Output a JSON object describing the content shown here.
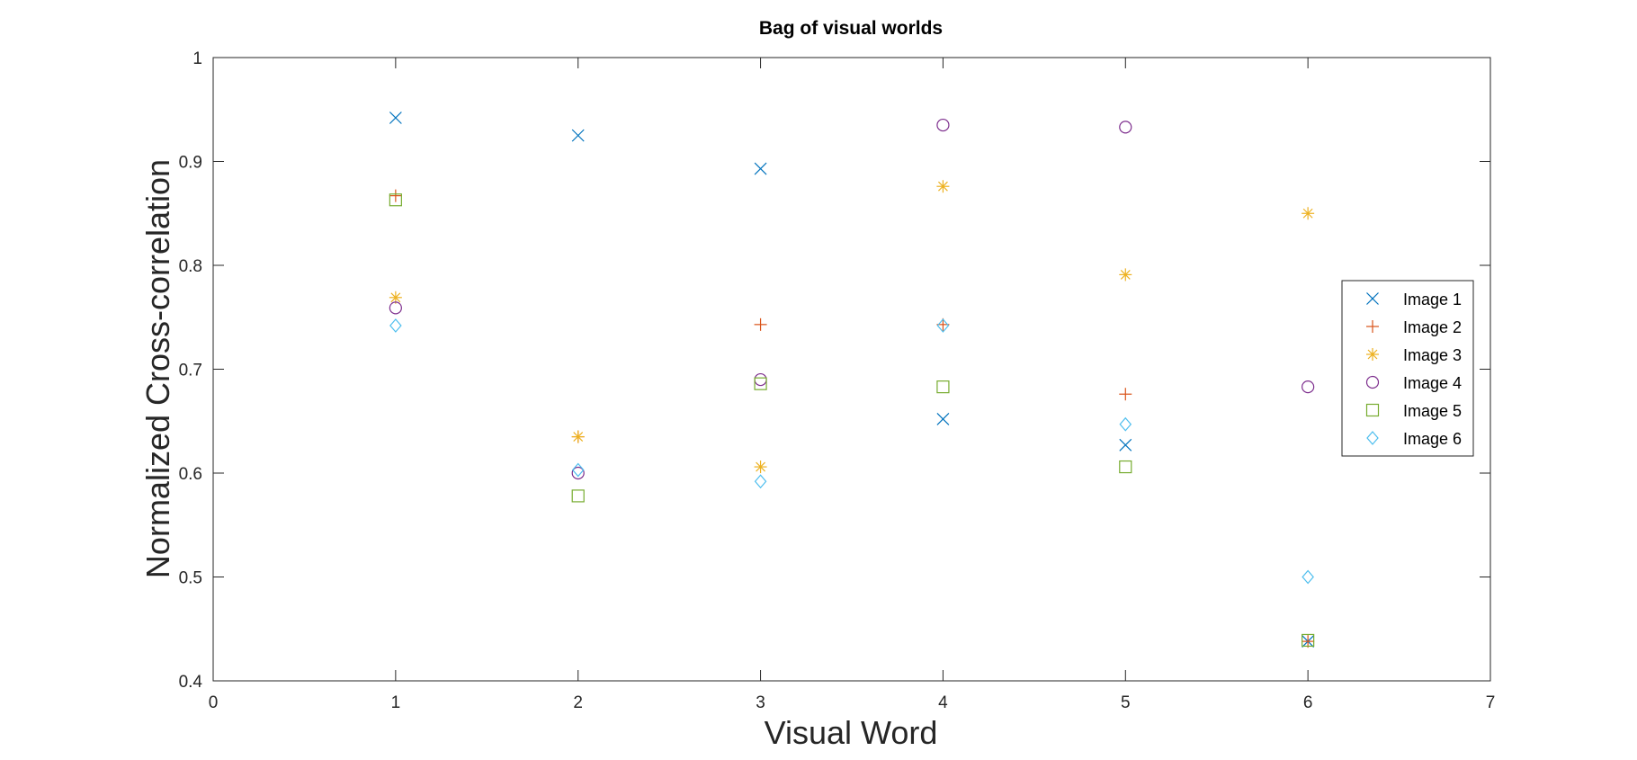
{
  "chart_data": {
    "type": "scatter",
    "title": "Bag of visual worlds",
    "xlabel": "Visual Word",
    "ylabel": "Normalized Cross-correlation",
    "xlim": [
      0,
      7
    ],
    "ylim": [
      0.4,
      1
    ],
    "xticks": [
      0,
      1,
      2,
      3,
      4,
      5,
      6,
      7
    ],
    "xtick_labels": [
      "0",
      "1",
      "2",
      "3",
      "4",
      "5",
      "6",
      "7"
    ],
    "yticks": [
      0.4,
      0.5,
      0.6,
      0.7,
      0.8,
      0.9,
      1
    ],
    "ytick_labels": [
      "0.4",
      "0.5",
      "0.6",
      "0.7",
      "0.8",
      "0.9",
      "1"
    ],
    "grid": false,
    "legend_position": "right",
    "x": [
      1,
      2,
      3,
      4,
      5,
      6
    ],
    "series": [
      {
        "name": "Image 1",
        "marker": "x",
        "color": "#0072BD",
        "values": [
          0.942,
          0.925,
          0.893,
          0.652,
          0.627,
          0.438
        ]
      },
      {
        "name": "Image 2",
        "marker": "plus",
        "color": "#D95319",
        "values": [
          0.867,
          0.635,
          0.743,
          0.743,
          0.676,
          0.438
        ]
      },
      {
        "name": "Image 3",
        "marker": "asterisk",
        "color": "#EDB120",
        "values": [
          0.769,
          0.635,
          0.606,
          0.876,
          0.791,
          0.85
        ]
      },
      {
        "name": "Image 4",
        "marker": "circle",
        "color": "#7E2F8E",
        "values": [
          0.759,
          0.6,
          0.69,
          0.935,
          0.933,
          0.683
        ]
      },
      {
        "name": "Image 5",
        "marker": "square",
        "color": "#77AC30",
        "values": [
          0.863,
          0.578,
          0.686,
          0.683,
          0.606,
          0.439
        ]
      },
      {
        "name": "Image 6",
        "marker": "diamond",
        "color": "#4DBEEE",
        "values": [
          0.742,
          0.603,
          0.592,
          0.742,
          0.647,
          0.5
        ]
      }
    ]
  }
}
